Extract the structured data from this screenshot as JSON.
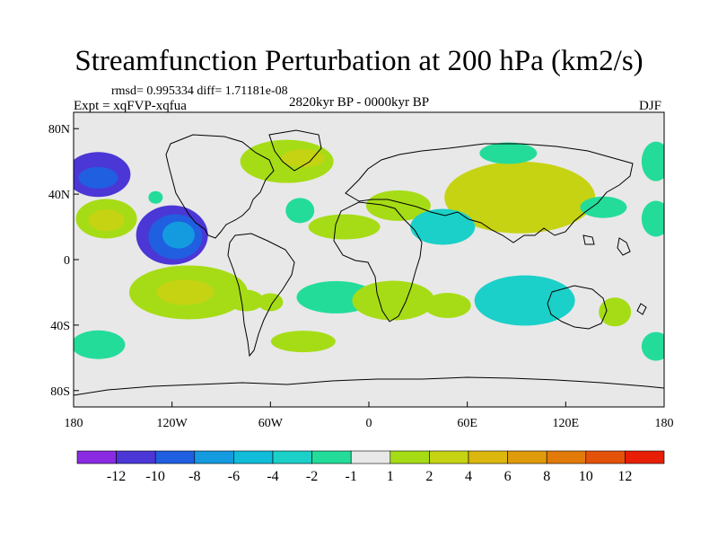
{
  "chart_data": {
    "type": "heatmap",
    "title": "Streamfunction Perturbation at 200 hPa (km2/s)",
    "stats_text": "rmsd= 0.995334 diff= 1.71181e-08",
    "experiment_label": "Expt = xqFVP-xqfua",
    "period_label": "2820kyr BP - 0000kyr BP",
    "season_label": "DJF",
    "x_axis": {
      "range": [
        -180,
        180
      ],
      "ticks": [
        {
          "value": -180,
          "label": "180"
        },
        {
          "value": -120,
          "label": "120W"
        },
        {
          "value": -60,
          "label": "60W"
        },
        {
          "value": 0,
          "label": "0"
        },
        {
          "value": 60,
          "label": "60E"
        },
        {
          "value": 120,
          "label": "120E"
        },
        {
          "value": 180,
          "label": "180"
        }
      ]
    },
    "y_axis": {
      "range": [
        -90,
        90
      ],
      "ticks": [
        {
          "value": 80,
          "label": "80N"
        },
        {
          "value": 40,
          "label": "40N"
        },
        {
          "value": 0,
          "label": "0"
        },
        {
          "value": -40,
          "label": "40S"
        },
        {
          "value": -80,
          "label": "80S"
        }
      ]
    },
    "colorbar": {
      "colors": [
        "#8a2be2",
        "#4b37d6",
        "#1f5fe0",
        "#149adf",
        "#10bcd9",
        "#1bd0c8",
        "#24dc9a",
        "#e8e8e8",
        "#a6dc16",
        "#c6d312",
        "#dcb70e",
        "#e09b0c",
        "#e27a0a",
        "#e4520a",
        "#e81e06"
      ],
      "labels": [
        "-12",
        "-10",
        "-8",
        "-6",
        "-4",
        "-2",
        "-1",
        "1",
        "2",
        "4",
        "6",
        "8",
        "10",
        "12"
      ]
    },
    "anomaly_regions": [
      {
        "lon": -165,
        "lat": 52,
        "level": 1
      },
      {
        "lon": -165,
        "lat": 50,
        "level": 2
      },
      {
        "lon": -160,
        "lat": 25,
        "level": 8
      },
      {
        "lon": -160,
        "lat": 24,
        "level": 9
      },
      {
        "lon": -120,
        "lat": 15,
        "level": 1
      },
      {
        "lon": -118,
        "lat": 14,
        "level": 2
      },
      {
        "lon": -116,
        "lat": 15,
        "level": 3
      },
      {
        "lon": -110,
        "lat": -20,
        "level": 8
      },
      {
        "lon": -112,
        "lat": -20,
        "level": 9
      },
      {
        "lon": -75,
        "lat": -25,
        "level": 8
      },
      {
        "lon": -60,
        "lat": -26,
        "level": 8
      },
      {
        "lon": -50,
        "lat": 60,
        "level": 8
      },
      {
        "lon": -40,
        "lat": 62,
        "level": 9
      },
      {
        "lon": -42,
        "lat": 30,
        "level": 6
      },
      {
        "lon": -15,
        "lat": 20,
        "level": 8
      },
      {
        "lon": -40,
        "lat": -50,
        "level": 8
      },
      {
        "lon": -20,
        "lat": -23,
        "level": 6
      },
      {
        "lon": 18,
        "lat": 33,
        "level": 8
      },
      {
        "lon": 15,
        "lat": -25,
        "level": 8
      },
      {
        "lon": 48,
        "lat": -28,
        "level": 8
      },
      {
        "lon": 78,
        "lat": 32,
        "level": 8
      },
      {
        "lon": 92,
        "lat": 38,
        "level": 9
      },
      {
        "lon": 45,
        "lat": 20,
        "level": 6
      },
      {
        "lon": 45,
        "lat": 20,
        "level": 5
      },
      {
        "lon": 90,
        "lat": -25,
        "level": 6
      },
      {
        "lon": 95,
        "lat": -25,
        "level": 5
      },
      {
        "lon": 85,
        "lat": 65,
        "level": 6
      },
      {
        "lon": 143,
        "lat": 32,
        "level": 6
      },
      {
        "lon": 150,
        "lat": -32,
        "level": 8
      },
      {
        "lon": 175,
        "lat": 60,
        "level": 6
      },
      {
        "lon": 175,
        "lat": 25,
        "level": 6
      },
      {
        "lon": 175,
        "lat": -53,
        "level": 6
      },
      {
        "lon": -165,
        "lat": -52,
        "level": 6
      },
      {
        "lon": -130,
        "lat": 38,
        "level": 6
      }
    ]
  }
}
